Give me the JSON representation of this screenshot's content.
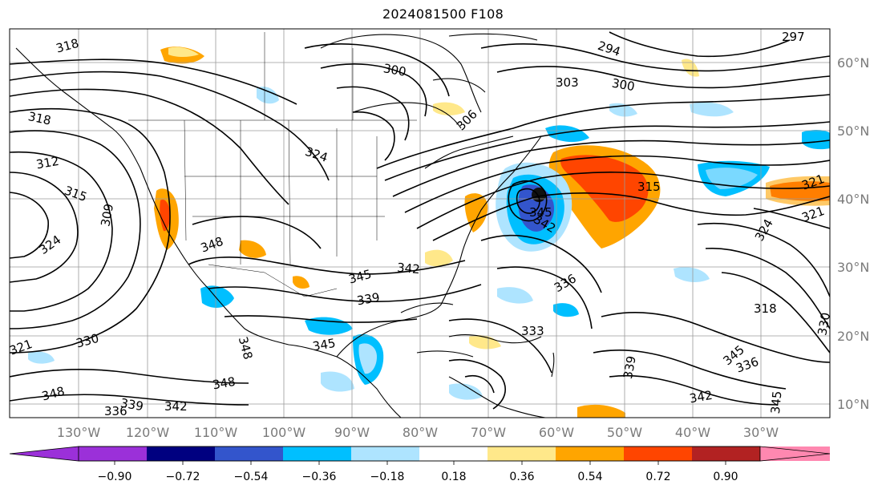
{
  "title": "2024081500 F108",
  "lon_labels": [
    "130°W",
    "120°W",
    "110°W",
    "100°W",
    "90°W",
    "80°W",
    "70°W",
    "60°W",
    "50°W",
    "40°W",
    "30°W"
  ],
  "lat_labels": [
    "60°N",
    "50°N",
    "40°N",
    "30°N",
    "20°N",
    "10°N"
  ],
  "contour_labels": [
    "297",
    "294",
    "300",
    "303",
    "300",
    "306",
    "309",
    "312",
    "315",
    "315",
    "318",
    "318",
    "318",
    "321",
    "321",
    "321",
    "324",
    "324",
    "324",
    "330",
    "330",
    "333",
    "336",
    "336",
    "336",
    "339",
    "339",
    "339",
    "342",
    "342",
    "342",
    "342",
    "345",
    "345",
    "345",
    "345",
    "345",
    "348",
    "348",
    "348",
    "348"
  ],
  "colorbar": {
    "ticks": [
      "−0.90",
      "−0.72",
      "−0.54",
      "−0.36",
      "−0.18",
      "0.18",
      "0.36",
      "0.54",
      "0.72",
      "0.90"
    ],
    "colors": [
      "#9b30d9",
      "#000080",
      "#3355cc",
      "#00bfff",
      "#aee4ff",
      "#ffffff",
      "#ffe88a",
      "#ffa500",
      "#ff4500",
      "#b22222",
      "#ff88b0"
    ]
  }
}
